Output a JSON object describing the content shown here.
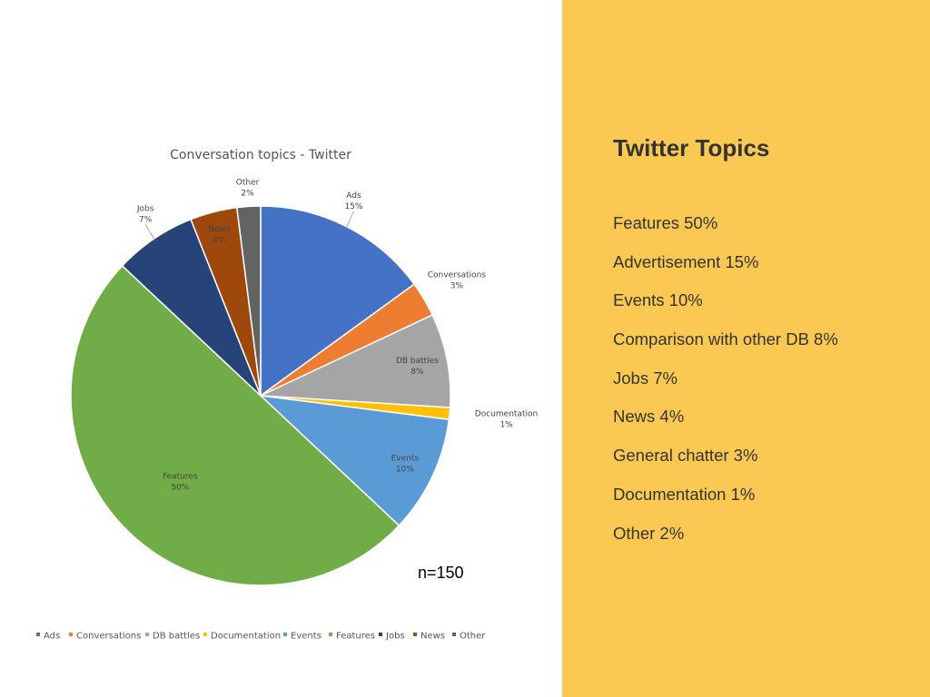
{
  "chart_data": {
    "type": "pie",
    "title": "Conversation topics - Twitter",
    "slices": [
      {
        "name": "Ads",
        "label": "Ads",
        "value": 15,
        "pct_label": "15%",
        "color": "#4472c4"
      },
      {
        "name": "Conversations",
        "label": "Conversations",
        "value": 3,
        "pct_label": "3%",
        "color": "#ed7d31"
      },
      {
        "name": "DB battles",
        "label": "DB battles",
        "value": 8,
        "pct_label": "8%",
        "color": "#a5a5a5"
      },
      {
        "name": "Documentation",
        "label": "Documentation",
        "value": 1,
        "pct_label": "1%",
        "color": "#ffc000"
      },
      {
        "name": "Events",
        "label": "Events",
        "value": 10,
        "pct_label": "10%",
        "color": "#5b9bd5"
      },
      {
        "name": "Features",
        "label": "Features",
        "value": 50,
        "pct_label": "50%",
        "color": "#70ad47"
      },
      {
        "name": "Jobs",
        "label": "Jobs",
        "value": 7,
        "pct_label": "7%",
        "color": "#264478"
      },
      {
        "name": "News",
        "label": "News",
        "value": 4,
        "pct_label": "4%",
        "color": "#9e480e"
      },
      {
        "name": "Other",
        "label": "Other",
        "value": 2,
        "pct_label": "2%",
        "color": "#636363"
      }
    ],
    "legend": [
      "Ads",
      "Conversations",
      "DB battles",
      "Documentation",
      "Events",
      "Features",
      "Jobs",
      "News",
      "Other"
    ],
    "legend_position": "bottom",
    "note": "n=150"
  },
  "side_panel": {
    "title": "Twitter Topics",
    "background": "#fbc952",
    "items": [
      "Features 50%",
      "Advertisement 15%",
      "Events 10%",
      "Comparison with other DB 8%",
      "Jobs 7%",
      "News 4%",
      "General chatter 3%",
      "Documentation 1%",
      "Other 2%"
    ]
  }
}
